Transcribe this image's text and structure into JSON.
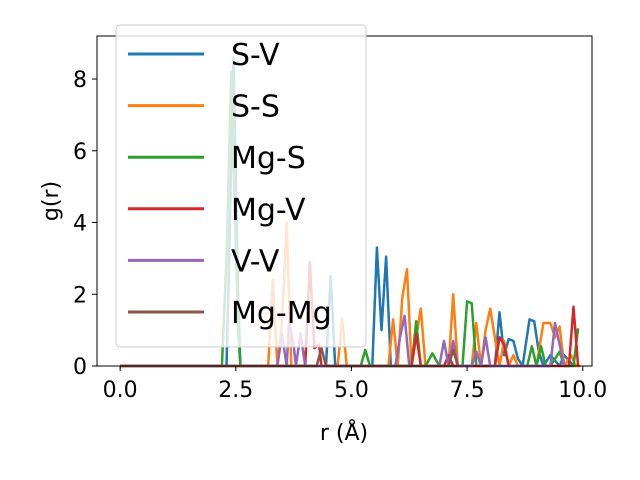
{
  "chart_data": {
    "type": "line",
    "title": "",
    "xlabel": "r (Å)",
    "ylabel": "g(r)",
    "xlim": [
      -0.5,
      10.2
    ],
    "ylim": [
      0,
      9.2
    ],
    "xticks": [
      0.0,
      2.5,
      5.0,
      7.5,
      10.0
    ],
    "xtick_labels": [
      "0.0",
      "2.5",
      "5.0",
      "7.5",
      "10.0"
    ],
    "yticks": [
      0,
      2,
      4,
      6,
      8
    ],
    "ytick_labels": [
      "0",
      "2",
      "4",
      "6",
      "8"
    ],
    "legend_position": "upper-left",
    "series": [
      {
        "name": "S-V",
        "color": "#1f77b4",
        "x": [
          0.0,
          2.3,
          2.35,
          2.45,
          2.55,
          2.6,
          4.45,
          4.55,
          4.65,
          5.45,
          5.55,
          5.65,
          5.75,
          5.85,
          8.1,
          8.2,
          8.3,
          8.4,
          8.5,
          8.6,
          8.7,
          8.85,
          8.95,
          9.05,
          9.15,
          9.3,
          9.5,
          9.6,
          9.8
        ],
        "y": [
          0.0,
          0.0,
          2.5,
          8.6,
          2.0,
          0.0,
          0.0,
          2.5,
          0.0,
          0.0,
          3.3,
          1.0,
          3.05,
          0.0,
          0.0,
          1.5,
          0.3,
          0.75,
          0.7,
          0.2,
          0.0,
          1.3,
          1.25,
          0.4,
          0.0,
          0.3,
          0.0,
          0.3,
          0.0
        ]
      },
      {
        "name": "S-S",
        "color": "#ff7f0e",
        "x": [
          0.0,
          3.2,
          3.3,
          3.4,
          3.5,
          3.6,
          3.7,
          4.7,
          4.8,
          4.9,
          5.8,
          5.9,
          6.0,
          6.1,
          6.2,
          6.3,
          6.5,
          6.6,
          7.1,
          7.2,
          7.3,
          7.6,
          7.7,
          7.8,
          7.9,
          8.0,
          8.2,
          8.3,
          8.4,
          8.5,
          8.6,
          8.7,
          9.0,
          9.15,
          9.3,
          9.4,
          9.5,
          9.6,
          9.75,
          9.85,
          9.95
        ],
        "y": [
          0.0,
          0.0,
          2.4,
          0.0,
          1.2,
          4.0,
          0.0,
          0.0,
          1.3,
          0.0,
          0.0,
          1.3,
          0.0,
          1.9,
          2.7,
          0.0,
          1.6,
          0.0,
          0.0,
          2.0,
          0.0,
          0.0,
          1.2,
          0.0,
          1.0,
          1.6,
          0.0,
          0.7,
          0.0,
          0.3,
          0.0,
          0.0,
          0.0,
          1.2,
          1.2,
          0.8,
          1.1,
          0.0,
          0.3,
          0.0,
          0.0
        ]
      },
      {
        "name": "Mg-S",
        "color": "#2ca02c",
        "x": [
          0.0,
          2.2,
          2.3,
          2.4,
          2.55,
          2.6,
          5.2,
          5.3,
          5.4,
          6.3,
          6.4,
          6.5,
          6.6,
          6.75,
          6.9,
          7.0,
          7.4,
          7.5,
          7.6,
          7.7,
          7.8,
          8.8,
          8.9,
          9.0,
          9.1,
          9.2,
          9.3,
          9.5,
          9.6,
          9.8,
          9.9
        ],
        "y": [
          0.0,
          0.0,
          3.0,
          8.2,
          1.0,
          0.0,
          0.0,
          0.45,
          0.0,
          0.0,
          1.25,
          0.0,
          0.0,
          0.35,
          0.0,
          0.0,
          0.0,
          1.8,
          1.75,
          0.0,
          0.0,
          0.0,
          0.55,
          0.0,
          0.55,
          0.0,
          0.0,
          0.4,
          0.0,
          0.0,
          1.05
        ]
      },
      {
        "name": "Mg-V",
        "color": "#d62728",
        "x": [
          0.0,
          4.0,
          4.1,
          4.2,
          4.3,
          4.35,
          4.45,
          6.3,
          6.4,
          6.5,
          6.6,
          7.0,
          7.1,
          7.2,
          8.1,
          8.2,
          8.3,
          8.4,
          9.7,
          9.8,
          9.9
        ],
        "y": [
          0.0,
          0.0,
          2.9,
          0.5,
          0.6,
          0.0,
          0.0,
          0.0,
          0.9,
          0.0,
          0.0,
          0.0,
          0.3,
          0.0,
          0.0,
          0.8,
          0.6,
          0.0,
          0.0,
          1.65,
          0.0
        ]
      },
      {
        "name": "V-V",
        "color": "#9467bd",
        "x": [
          0.0,
          3.4,
          3.5,
          3.6,
          3.65,
          3.75,
          3.8,
          3.9,
          4.0,
          5.95,
          6.05,
          6.15,
          6.25,
          6.9,
          7.0,
          7.1,
          7.2,
          7.3,
          7.6,
          7.7,
          7.8,
          7.9,
          8.0,
          8.1,
          9.3,
          9.4,
          9.5,
          9.6
        ],
        "y": [
          0.0,
          0.0,
          0.9,
          0.0,
          1.2,
          0.6,
          0.0,
          0.9,
          0.0,
          0.0,
          0.8,
          1.4,
          0.0,
          0.0,
          0.7,
          0.0,
          0.7,
          0.0,
          0.0,
          0.4,
          0.0,
          0.8,
          0.0,
          0.0,
          0.0,
          1.2,
          0.6,
          0.0
        ]
      },
      {
        "name": "Mg-Mg",
        "color": "#8c564b",
        "x": [
          0.0,
          4.25,
          4.35,
          4.45,
          7.1,
          7.2,
          7.3
        ],
        "y": [
          0.0,
          0.0,
          0.5,
          0.0,
          0.0,
          0.45,
          0.0
        ]
      }
    ]
  }
}
